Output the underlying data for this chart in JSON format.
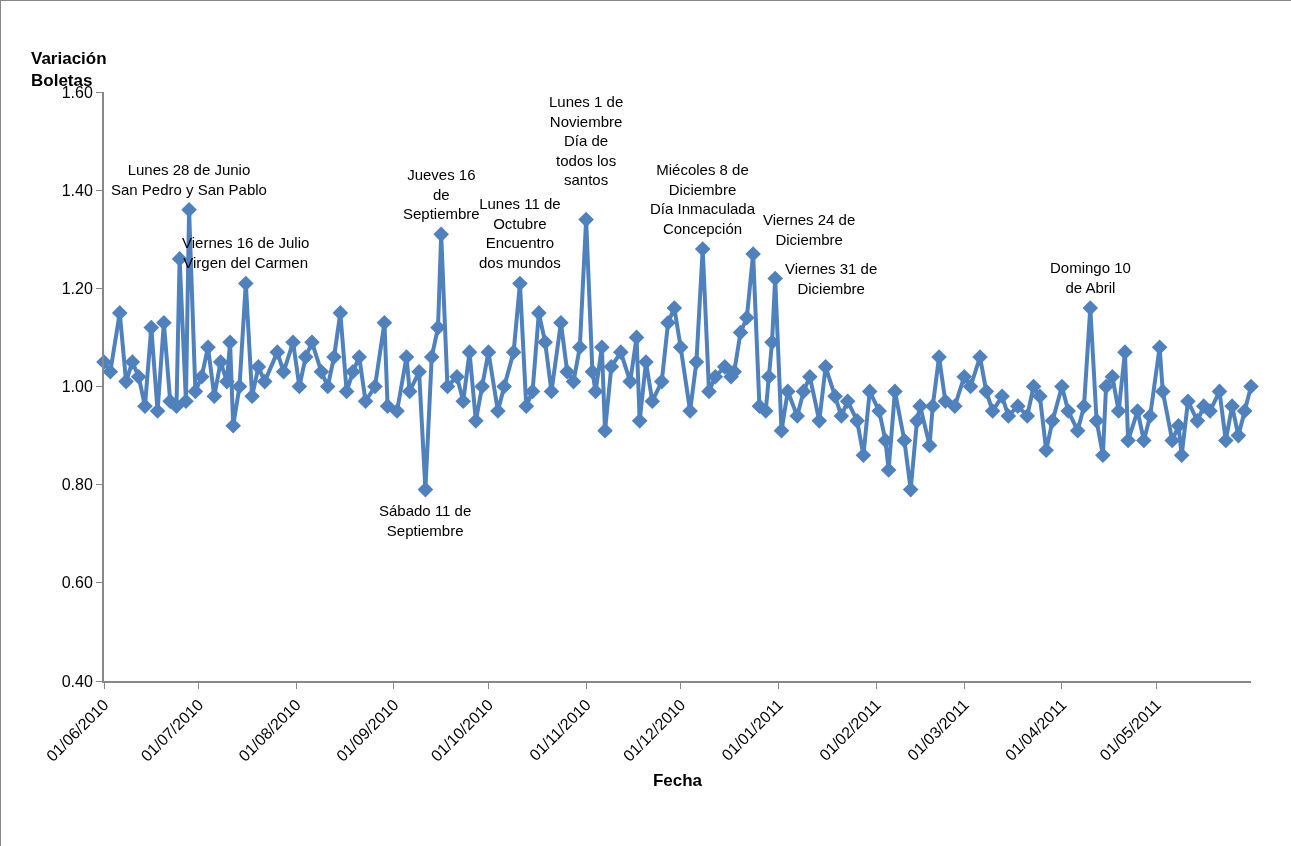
{
  "chart_data": {
    "type": "line",
    "xlabel": "Fecha",
    "ylabel": "Variación\nBoletas",
    "x": [
      "2010-06-01",
      "2010-06-03",
      "2010-06-06",
      "2010-06-08",
      "2010-06-10",
      "2010-06-12",
      "2010-06-14",
      "2010-06-16",
      "2010-06-18",
      "2010-06-20",
      "2010-06-22",
      "2010-06-24",
      "2010-06-25",
      "2010-06-27",
      "2010-06-28",
      "2010-06-30",
      "2010-07-02",
      "2010-07-04",
      "2010-07-06",
      "2010-07-08",
      "2010-07-10",
      "2010-07-11",
      "2010-07-12",
      "2010-07-14",
      "2010-07-16",
      "2010-07-18",
      "2010-07-20",
      "2010-07-22",
      "2010-07-26",
      "2010-07-28",
      "2010-07-31",
      "2010-08-02",
      "2010-08-04",
      "2010-08-06",
      "2010-08-09",
      "2010-08-11",
      "2010-08-13",
      "2010-08-15",
      "2010-08-17",
      "2010-08-19",
      "2010-08-21",
      "2010-08-23",
      "2010-08-26",
      "2010-08-29",
      "2010-08-30",
      "2010-09-02",
      "2010-09-05",
      "2010-09-06",
      "2010-09-09",
      "2010-09-11",
      "2010-09-13",
      "2010-09-15",
      "2010-09-16",
      "2010-09-18",
      "2010-09-21",
      "2010-09-23",
      "2010-09-25",
      "2010-09-27",
      "2010-09-29",
      "2010-10-01",
      "2010-10-04",
      "2010-10-06",
      "2010-10-09",
      "2010-10-11",
      "2010-10-13",
      "2010-10-15",
      "2010-10-17",
      "2010-10-19",
      "2010-10-21",
      "2010-10-24",
      "2010-10-26",
      "2010-10-28",
      "2010-10-30",
      "2010-11-01",
      "2010-11-03",
      "2010-11-04",
      "2010-11-06",
      "2010-11-07",
      "2010-11-09",
      "2010-11-12",
      "2010-11-15",
      "2010-11-17",
      "2010-11-18",
      "2010-11-20",
      "2010-11-22",
      "2010-11-25",
      "2010-11-27",
      "2010-11-29",
      "2010-12-01",
      "2010-12-04",
      "2010-12-06",
      "2010-12-08",
      "2010-12-10",
      "2010-12-12",
      "2010-12-15",
      "2010-12-17",
      "2010-12-18",
      "2010-12-20",
      "2010-12-22",
      "2010-12-24",
      "2010-12-26",
      "2010-12-28",
      "2010-12-29",
      "2010-12-30",
      "2010-12-31",
      "2011-01-02",
      "2011-01-04",
      "2011-01-07",
      "2011-01-09",
      "2011-01-11",
      "2011-01-14",
      "2011-01-16",
      "2011-01-19",
      "2011-01-21",
      "2011-01-23",
      "2011-01-26",
      "2011-01-28",
      "2011-01-30",
      "2011-02-02",
      "2011-02-04",
      "2011-02-05",
      "2011-02-07",
      "2011-02-10",
      "2011-02-12",
      "2011-02-14",
      "2011-02-15",
      "2011-02-18",
      "2011-02-19",
      "2011-02-21",
      "2011-02-23",
      "2011-02-26",
      "2011-03-01",
      "2011-03-03",
      "2011-03-06",
      "2011-03-08",
      "2011-03-10",
      "2011-03-13",
      "2011-03-15",
      "2011-03-18",
      "2011-03-21",
      "2011-03-23",
      "2011-03-25",
      "2011-03-27",
      "2011-03-29",
      "2011-04-01",
      "2011-04-03",
      "2011-04-06",
      "2011-04-08",
      "2011-04-10",
      "2011-04-12",
      "2011-04-14",
      "2011-04-15",
      "2011-04-17",
      "2011-04-19",
      "2011-04-21",
      "2011-04-22",
      "2011-04-25",
      "2011-04-27",
      "2011-04-29",
      "2011-05-02",
      "2011-05-03",
      "2011-05-06",
      "2011-05-08",
      "2011-05-09",
      "2011-05-11",
      "2011-05-14",
      "2011-05-16",
      "2011-05-18",
      "2011-05-21",
      "2011-05-23",
      "2011-05-25",
      "2011-05-27",
      "2011-05-29",
      "2011-05-31"
    ],
    "series": [
      {
        "color": "#4f81bd",
        "values": [
          1.05,
          1.03,
          1.15,
          1.01,
          1.05,
          1.02,
          0.96,
          1.12,
          0.95,
          1.13,
          0.97,
          0.96,
          1.26,
          0.97,
          1.36,
          0.99,
          1.02,
          1.08,
          0.98,
          1.05,
          1.01,
          1.09,
          0.92,
          1.0,
          1.21,
          0.98,
          1.04,
          1.01,
          1.07,
          1.03,
          1.09,
          1.0,
          1.06,
          1.09,
          1.03,
          1.0,
          1.06,
          1.15,
          0.99,
          1.03,
          1.06,
          0.97,
          1.0,
          1.13,
          0.96,
          0.95,
          1.06,
          0.99,
          1.03,
          0.79,
          1.06,
          1.12,
          1.31,
          1.0,
          1.02,
          0.97,
          1.07,
          0.93,
          1.0,
          1.07,
          0.95,
          1.0,
          1.07,
          1.21,
          0.96,
          0.99,
          1.15,
          1.09,
          0.99,
          1.13,
          1.03,
          1.01,
          1.08,
          1.34,
          1.03,
          0.99,
          1.08,
          0.91,
          1.04,
          1.07,
          1.01,
          1.1,
          0.93,
          1.05,
          0.97,
          1.01,
          1.13,
          1.16,
          1.08,
          0.95,
          1.05,
          1.28,
          0.99,
          1.02,
          1.04,
          1.02,
          1.03,
          1.11,
          1.14,
          1.27,
          0.96,
          0.95,
          1.02,
          1.09,
          1.22,
          0.91,
          0.99,
          0.94,
          0.99,
          1.02,
          0.93,
          1.04,
          0.98,
          0.94,
          0.97,
          0.93,
          0.86,
          0.99,
          0.95,
          0.89,
          0.83,
          0.99,
          0.89,
          0.79,
          0.93,
          0.96,
          0.88,
          0.96,
          1.06,
          0.97,
          0.96,
          1.02,
          1.0,
          1.06,
          0.99,
          0.95,
          0.98,
          0.94,
          0.96,
          0.94,
          1.0,
          0.98,
          0.87,
          0.93,
          1.0,
          0.95,
          0.91,
          0.96,
          1.16,
          0.93,
          0.86,
          1.0,
          1.02,
          0.95,
          1.07,
          0.89,
          0.95,
          0.89,
          0.94,
          1.08,
          0.99,
          0.89,
          0.92,
          0.86,
          0.97,
          0.93,
          0.96,
          0.95,
          0.99,
          0.89,
          0.96,
          0.9,
          0.95,
          1.0
        ]
      }
    ],
    "marker": "diamond",
    "line_style": "solid",
    "grid": false,
    "xlim": [
      "2010-06-01",
      "2011-05-31"
    ],
    "xticks": [
      {
        "value": "2010-06-01",
        "label": "01/06/2010"
      },
      {
        "value": "2010-07-01",
        "label": "01/07/2010"
      },
      {
        "value": "2010-08-01",
        "label": "01/08/2010"
      },
      {
        "value": "2010-09-01",
        "label": "01/09/2010"
      },
      {
        "value": "2010-10-01",
        "label": "01/10/2010"
      },
      {
        "value": "2010-11-01",
        "label": "01/11/2010"
      },
      {
        "value": "2010-12-01",
        "label": "01/12/2010"
      },
      {
        "value": "2011-01-01",
        "label": "01/01/2011"
      },
      {
        "value": "2011-02-01",
        "label": "01/02/2011"
      },
      {
        "value": "2011-03-01",
        "label": "01/03/2011"
      },
      {
        "value": "2011-04-01",
        "label": "01/04/2011"
      },
      {
        "value": "2011-05-01",
        "label": "01/05/2011"
      }
    ],
    "ylim": [
      0.4,
      1.6
    ],
    "yticks": [
      {
        "value": 0.4,
        "label": "0.40"
      },
      {
        "value": 0.6,
        "label": "0.60"
      },
      {
        "value": 0.8,
        "label": "0.80"
      },
      {
        "value": 1.0,
        "label": "1.00"
      },
      {
        "value": 1.2,
        "label": "1.20"
      },
      {
        "value": 1.4,
        "label": "1.40"
      },
      {
        "value": 1.6,
        "label": "1.60"
      }
    ],
    "annotations": [
      {
        "text": "Lunes 28 de Junio\nSan Pedro y San Pablo",
        "x": "2010-06-28",
        "y": 1.36
      },
      {
        "text": "Viernes 16 de Julio\nVirgen del Carmen",
        "x": "2010-07-16",
        "y": 1.21
      },
      {
        "text": "Jueves 16\nde\nSeptiembre",
        "x": "2010-09-16",
        "y": 1.31
      },
      {
        "text": "Sábado 11 de\nSeptiembre",
        "x": "2010-09-11",
        "y": 0.79
      },
      {
        "text": "Lunes 11 de\nOctubre\nEncuentro\ndos mundos",
        "x": "2010-10-11",
        "y": 1.21
      },
      {
        "text": "Lunes 1 de\nNoviembre\nDía de\ntodos los\nsantos",
        "x": "2010-11-01",
        "y": 1.34
      },
      {
        "text": "Miécoles 8 de\nDiciembre\nDía Inmaculada\nConcepción",
        "x": "2010-12-08",
        "y": 1.28
      },
      {
        "text": "Viernes 24 de\nDiciembre",
        "x": "2010-12-24",
        "y": 1.27
      },
      {
        "text": "Viernes 31 de\nDiciembre",
        "x": "2010-12-31",
        "y": 1.22
      },
      {
        "text": "Domingo 10\nde Abril",
        "x": "2011-04-10",
        "y": 1.16
      }
    ]
  }
}
